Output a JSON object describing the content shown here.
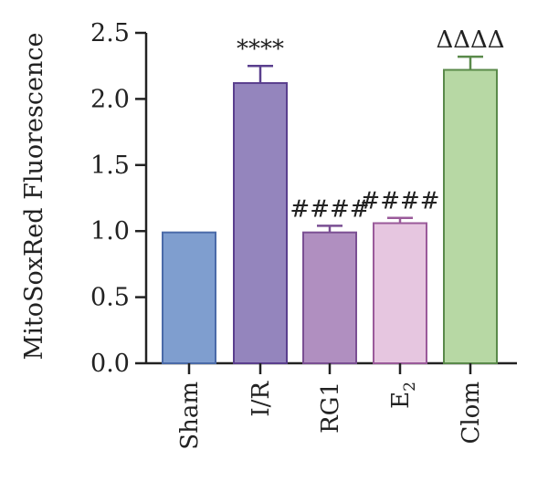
{
  "chart_data": {
    "type": "bar",
    "ylabel": "MitoSoxRed Fluorescence",
    "ylim": [
      0,
      2.5
    ],
    "yticks": [
      "0.0",
      "0.5",
      "1.0",
      "1.5",
      "2.0",
      "2.5"
    ],
    "ytick_values": [
      0,
      0.5,
      1.0,
      1.5,
      2.0,
      2.5
    ],
    "grid": false,
    "bars": [
      {
        "category": "Sham",
        "sub": "",
        "value": 0.99,
        "error": 0.0,
        "significance": "",
        "fill": "#7f9ecf",
        "stroke": "#4a6aa8"
      },
      {
        "category": "I/R",
        "sub": "",
        "value": 2.12,
        "error": 0.13,
        "significance": "****",
        "fill": "#9485bd",
        "stroke": "#5a3f8e"
      },
      {
        "category": "RG1",
        "sub": "",
        "value": 0.99,
        "error": 0.05,
        "significance": "####",
        "fill": "#b08fc0",
        "stroke": "#7a4f93"
      },
      {
        "category": "E",
        "sub": "2",
        "value": 1.06,
        "error": 0.04,
        "significance": "####",
        "fill": "#e6c6e0",
        "stroke": "#9a5a9a"
      },
      {
        "category": "Clom",
        "sub": "",
        "value": 2.22,
        "error": 0.1,
        "significance": "ΔΔΔΔ",
        "fill": "#b7d8a4",
        "stroke": "#5a8a4a"
      }
    ]
  }
}
